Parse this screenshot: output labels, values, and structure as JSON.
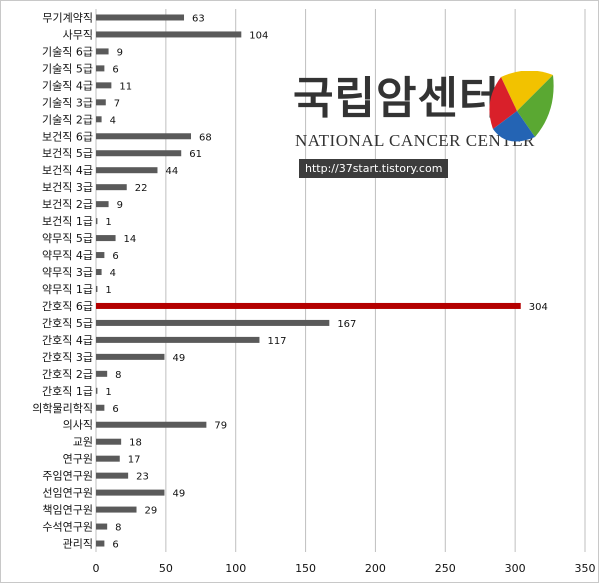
{
  "chart_data": {
    "type": "bar",
    "orientation": "horizontal",
    "categories": [
      "무기계약직",
      "사무직",
      "기술직 6급",
      "기술직 5급",
      "기술직 4급",
      "기술직 3급",
      "기술직 2급",
      "보건직 6급",
      "보건직 5급",
      "보건직 4급",
      "보건직 3급",
      "보건직 2급",
      "보건직 1급",
      "약무직 5급",
      "약무직 4급",
      "약무직 3급",
      "약무직 1급",
      "간호직 6급",
      "간호직 5급",
      "간호직 4급",
      "간호직 3급",
      "간호직 2급",
      "간호직 1급",
      "의학물리학직",
      "의사직",
      "교원",
      "연구원",
      "주임연구원",
      "선임연구원",
      "책임연구원",
      "수석연구원",
      "관리직"
    ],
    "values": [
      63,
      104,
      9,
      6,
      11,
      7,
      4,
      68,
      61,
      44,
      22,
      9,
      1,
      14,
      6,
      4,
      1,
      304,
      167,
      117,
      49,
      8,
      1,
      6,
      79,
      18,
      17,
      23,
      49,
      29,
      8,
      6
    ],
    "highlight_index": 17,
    "xlim": [
      0,
      350
    ],
    "x_ticks": [
      0,
      50,
      100,
      150,
      200,
      250,
      300,
      350
    ],
    "grid": "vertical",
    "colors": {
      "bar": "#5a5a5a",
      "highlight": "#b40000",
      "grid": "#bfbfbf"
    }
  },
  "watermark": {
    "title": "국립암센터",
    "subtitle": "NATIONAL CANCER CENTER",
    "url": "http://37start.tistory.com",
    "colors": {
      "yellow": "#f2c200",
      "green": "#5aa832",
      "red": "#d9202a",
      "blue": "#2464b4"
    }
  }
}
